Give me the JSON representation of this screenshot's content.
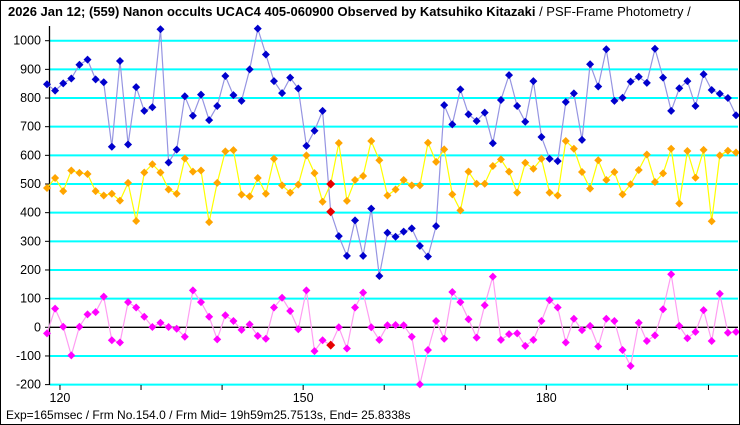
{
  "title": {
    "main": "2026 Jan 12; (559) Nanon occults UCAC4 405-060900 Observed by Katsuhiko Kitazaki",
    "suffix": " / PSF-Frame Photometry /"
  },
  "status_bar": "Exp=165msec / Frm No.154.0 / Frm Mid= 19h59m25.7513s,  End= 25.8338s",
  "chart_data": {
    "type": "line",
    "title": "",
    "xlabel": "",
    "ylabel": "",
    "x_axis": {
      "unit": "frame-number",
      "start": 118.4,
      "step": 1,
      "labeled_ticks": [
        120,
        150,
        180
      ],
      "minor_ticks": [
        120,
        130,
        140,
        150,
        160,
        170,
        180,
        190,
        200
      ]
    },
    "y_axis": {
      "min": -200,
      "max": 1000,
      "tick_step": 100,
      "plot_top_value": 1050
    },
    "grid": "horizontal-cyan",
    "grid_color": "#00ffff",
    "zero_line_color": "#000000",
    "axis_color": "#000000",
    "legend": "none",
    "current_frame_marker": {
      "index": 35,
      "frame": 154,
      "color": "#e60000"
    },
    "series": [
      {
        "name": "blue",
        "marker_color": "#0000cd",
        "line_color": "#9695e2",
        "values": [
          848,
          826,
          851,
          868,
          916,
          934,
          865,
          855,
          630,
          929,
          638,
          838,
          755,
          768,
          1040,
          575,
          620,
          806,
          738,
          812,
          723,
          772,
          877,
          810,
          790,
          900,
          1042,
          952,
          859,
          817,
          871,
          833,
          633,
          686,
          755,
          403,
          318,
          249,
          373,
          249,
          414,
          179,
          330,
          316,
          334,
          345,
          284,
          247,
          353,
          775,
          708,
          830,
          743,
          720,
          749,
          642,
          793,
          880,
          772,
          717,
          859,
          664,
          588,
          580,
          786,
          816,
          654,
          918,
          840,
          970,
          790,
          801,
          857,
          874,
          853,
          972,
          871,
          755,
          834,
          859,
          772,
          883,
          828,
          815,
          800,
          740
        ]
      },
      {
        "name": "orange",
        "marker_color": "#ffa500",
        "line_color": "#ffff00",
        "values": [
          486,
          521,
          475,
          547,
          539,
          535,
          475,
          460,
          466,
          442,
          504,
          371,
          540,
          569,
          540,
          481,
          466,
          589,
          543,
          547,
          367,
          504,
          614,
          618,
          463,
          457,
          521,
          466,
          588,
          495,
          470,
          498,
          600,
          538,
          438,
          500,
          643,
          441,
          514,
          528,
          650,
          583,
          460,
          481,
          514,
          495,
          495,
          644,
          577,
          621,
          464,
          408,
          543,
          501,
          501,
          563,
          586,
          543,
          470,
          574,
          553,
          588,
          470,
          460,
          650,
          623,
          542,
          484,
          583,
          514,
          542,
          464,
          499,
          549,
          603,
          507,
          537,
          623,
          432,
          615,
          522,
          619,
          370,
          600,
          616,
          610
        ]
      },
      {
        "name": "magenta",
        "marker_color": "#ff00ff",
        "line_color": "#ff9df2",
        "values": [
          -21,
          65,
          2,
          -98,
          2,
          45,
          53,
          107,
          -45,
          -53,
          88,
          69,
          37,
          1,
          16,
          1,
          -5,
          -33,
          129,
          88,
          37,
          -42,
          42,
          22,
          -9,
          10,
          -30,
          -40,
          69,
          103,
          57,
          -7,
          129,
          -83,
          -45,
          -62,
          0,
          -74,
          69,
          121,
          0,
          -44,
          7,
          8,
          7,
          -33,
          -199,
          -79,
          22,
          -40,
          123,
          88,
          28,
          -36,
          77,
          177,
          -44,
          -24,
          -21,
          -65,
          -44,
          22,
          95,
          69,
          -53,
          30,
          -10,
          5,
          -67,
          30,
          22,
          -79,
          -135,
          16,
          -48,
          -28,
          63,
          185,
          5,
          -38,
          -16,
          60,
          -48,
          117,
          -19,
          -16
        ]
      }
    ]
  }
}
